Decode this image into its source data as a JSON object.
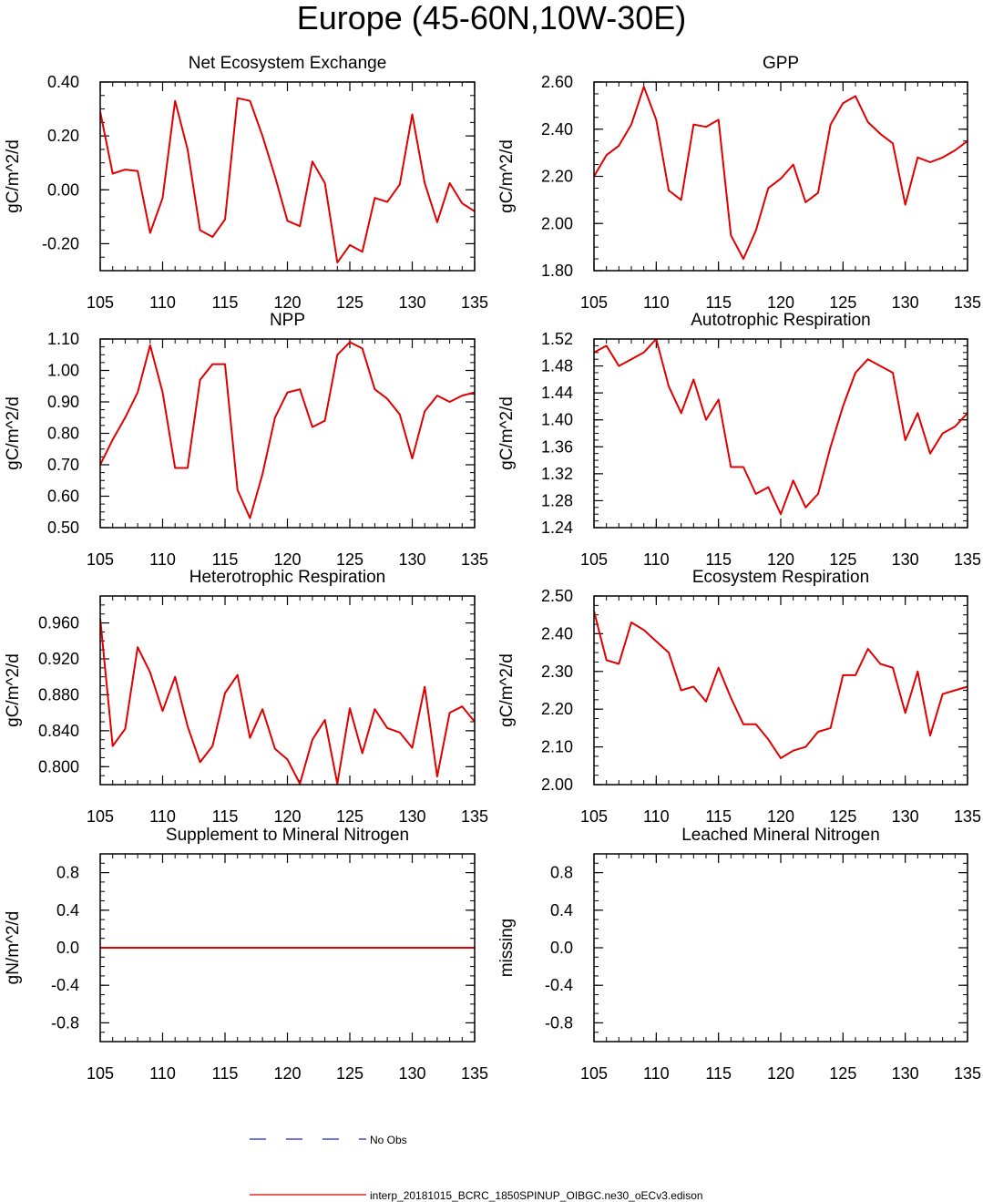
{
  "main_title": "Europe (45-60N,10W-30E)",
  "legend": {
    "items": [
      {
        "label": "No Obs",
        "color": "#2222cc",
        "style": "dashed"
      },
      {
        "label": "interp_20181015_BCRC_1850SPINUP_OIBGC.ne30_oECv3.edison",
        "color": "#e00000",
        "style": "solid"
      }
    ]
  },
  "chart_data": [
    {
      "type": "line",
      "title": "Net Ecosystem Exchange",
      "ylabel": "gC/m^2/d",
      "xlim": [
        105,
        135
      ],
      "ylim": [
        -0.3,
        0.4
      ],
      "yticks": [
        0.4,
        0.2,
        0.0,
        -0.2
      ],
      "ytick_labels": [
        "0.40",
        "0.20",
        "0.00",
        "-0.20"
      ],
      "xticks": [
        105,
        110,
        115,
        120,
        125,
        130,
        135
      ],
      "xtick_labels": [
        "105",
        "110",
        "115",
        "120",
        "125",
        "130",
        "135"
      ],
      "series": [
        {
          "color": "#e00000",
          "x": [
            105,
            106,
            107,
            108,
            109,
            110,
            111,
            112,
            113,
            114,
            115,
            116,
            117,
            118,
            119,
            120,
            121,
            122,
            123,
            124,
            125,
            126,
            127,
            128,
            129,
            130,
            131,
            132,
            133,
            134,
            135
          ],
          "values": [
            0.29,
            0.06,
            0.075,
            0.07,
            -0.16,
            -0.03,
            0.33,
            0.15,
            -0.15,
            -0.175,
            -0.11,
            0.34,
            0.33,
            0.2,
            0.05,
            -0.115,
            -0.135,
            0.105,
            0.025,
            -0.27,
            -0.205,
            -0.23,
            -0.03,
            -0.045,
            0.02,
            0.28,
            0.025,
            -0.12,
            0.025,
            -0.05,
            -0.08
          ]
        }
      ]
    },
    {
      "type": "line",
      "title": "GPP",
      "ylabel": "gC/m^2/d",
      "xlim": [
        105,
        135
      ],
      "ylim": [
        1.8,
        2.6
      ],
      "yticks": [
        2.6,
        2.4,
        2.2,
        2.0,
        1.8
      ],
      "ytick_labels": [
        "2.60",
        "2.40",
        "2.20",
        "2.00",
        "1.80"
      ],
      "xticks": [
        105,
        110,
        115,
        120,
        125,
        130,
        135
      ],
      "xtick_labels": [
        "105",
        "110",
        "115",
        "120",
        "125",
        "130",
        "135"
      ],
      "series": [
        {
          "color": "#e00000",
          "x": [
            105,
            106,
            107,
            108,
            109,
            110,
            111,
            112,
            113,
            114,
            115,
            116,
            117,
            118,
            119,
            120,
            121,
            122,
            123,
            124,
            125,
            126,
            127,
            128,
            129,
            130,
            131,
            132,
            133,
            134,
            135
          ],
          "values": [
            2.2,
            2.29,
            2.33,
            2.42,
            2.58,
            2.44,
            2.14,
            2.1,
            2.42,
            2.41,
            2.44,
            1.95,
            1.85,
            1.97,
            2.15,
            2.19,
            2.25,
            2.09,
            2.13,
            2.42,
            2.51,
            2.54,
            2.43,
            2.38,
            2.34,
            2.08,
            2.28,
            2.26,
            2.28,
            2.31,
            2.35
          ]
        }
      ]
    },
    {
      "type": "line",
      "title": "NPP",
      "ylabel": "gC/m^2/d",
      "xlim": [
        105,
        135
      ],
      "ylim": [
        0.5,
        1.1
      ],
      "yticks": [
        1.1,
        1.0,
        0.9,
        0.8,
        0.7,
        0.6,
        0.5
      ],
      "ytick_labels": [
        "1.10",
        "1.00",
        "0.90",
        "0.80",
        "0.70",
        "0.60",
        "0.50"
      ],
      "xticks": [
        105,
        110,
        115,
        120,
        125,
        130,
        135
      ],
      "xtick_labels": [
        "105",
        "110",
        "115",
        "120",
        "125",
        "130",
        "135"
      ],
      "series": [
        {
          "color": "#e00000",
          "x": [
            105,
            106,
            107,
            108,
            109,
            110,
            111,
            112,
            113,
            114,
            115,
            116,
            117,
            118,
            119,
            120,
            121,
            122,
            123,
            124,
            125,
            126,
            127,
            128,
            129,
            130,
            131,
            132,
            133,
            134,
            135
          ],
          "values": [
            0.7,
            0.78,
            0.85,
            0.93,
            1.08,
            0.93,
            0.69,
            0.69,
            0.97,
            1.02,
            1.02,
            0.62,
            0.53,
            0.67,
            0.85,
            0.93,
            0.94,
            0.82,
            0.84,
            1.05,
            1.09,
            1.07,
            0.94,
            0.91,
            0.86,
            0.72,
            0.87,
            0.92,
            0.9,
            0.92,
            0.93
          ]
        }
      ]
    },
    {
      "type": "line",
      "title": "Autotrophic Respiration",
      "ylabel": "gC/m^2/d",
      "xlim": [
        105,
        135
      ],
      "ylim": [
        1.24,
        1.52
      ],
      "yticks": [
        1.52,
        1.48,
        1.44,
        1.4,
        1.36,
        1.32,
        1.28,
        1.24
      ],
      "ytick_labels": [
        "1.52",
        "1.48",
        "1.44",
        "1.40",
        "1.36",
        "1.32",
        "1.28",
        "1.24"
      ],
      "xticks": [
        105,
        110,
        115,
        120,
        125,
        130,
        135
      ],
      "xtick_labels": [
        "105",
        "110",
        "115",
        "120",
        "125",
        "130",
        "135"
      ],
      "series": [
        {
          "color": "#e00000",
          "x": [
            105,
            106,
            107,
            108,
            109,
            110,
            111,
            112,
            113,
            114,
            115,
            116,
            117,
            118,
            119,
            120,
            121,
            122,
            123,
            124,
            125,
            126,
            127,
            128,
            129,
            130,
            131,
            132,
            133,
            134,
            135
          ],
          "values": [
            1.5,
            1.51,
            1.48,
            1.49,
            1.5,
            1.52,
            1.45,
            1.41,
            1.46,
            1.4,
            1.43,
            1.33,
            1.33,
            1.29,
            1.3,
            1.26,
            1.31,
            1.27,
            1.29,
            1.36,
            1.42,
            1.47,
            1.49,
            1.48,
            1.47,
            1.37,
            1.41,
            1.35,
            1.38,
            1.39,
            1.41
          ]
        }
      ]
    },
    {
      "type": "line",
      "title": "Heterotrophic Respiration",
      "ylabel": "gC/m^2/d",
      "xlim": [
        105,
        135
      ],
      "ylim": [
        0.78,
        0.99
      ],
      "yticks": [
        0.96,
        0.92,
        0.88,
        0.84,
        0.8
      ],
      "ytick_labels": [
        "0.960",
        "0.920",
        "0.880",
        "0.840",
        "0.800"
      ],
      "xticks": [
        105,
        110,
        115,
        120,
        125,
        130,
        135
      ],
      "xtick_labels": [
        "105",
        "110",
        "115",
        "120",
        "125",
        "130",
        "135"
      ],
      "series": [
        {
          "color": "#e00000",
          "x": [
            105,
            106,
            107,
            108,
            109,
            110,
            111,
            112,
            113,
            114,
            115,
            116,
            117,
            118,
            119,
            120,
            121,
            122,
            123,
            124,
            125,
            126,
            127,
            128,
            129,
            130,
            131,
            132,
            133,
            134,
            135
          ],
          "values": [
            0.965,
            0.823,
            0.842,
            0.933,
            0.905,
            0.862,
            0.9,
            0.845,
            0.805,
            0.823,
            0.882,
            0.902,
            0.832,
            0.864,
            0.82,
            0.808,
            0.781,
            0.83,
            0.852,
            0.781,
            0.865,
            0.815,
            0.864,
            0.843,
            0.838,
            0.821,
            0.889,
            0.789,
            0.86,
            0.867,
            0.85
          ]
        }
      ]
    },
    {
      "type": "line",
      "title": "Ecosystem Respiration",
      "ylabel": "gC/m^2/d",
      "xlim": [
        105,
        135
      ],
      "ylim": [
        2.0,
        2.5
      ],
      "yticks": [
        2.5,
        2.4,
        2.3,
        2.2,
        2.1,
        2.0
      ],
      "ytick_labels": [
        "2.50",
        "2.40",
        "2.30",
        "2.20",
        "2.10",
        "2.00"
      ],
      "xticks": [
        105,
        110,
        115,
        120,
        125,
        130,
        135
      ],
      "xtick_labels": [
        "105",
        "110",
        "115",
        "120",
        "125",
        "130",
        "135"
      ],
      "series": [
        {
          "color": "#e00000",
          "x": [
            105,
            106,
            107,
            108,
            109,
            110,
            111,
            112,
            113,
            114,
            115,
            116,
            117,
            118,
            119,
            120,
            121,
            122,
            123,
            124,
            125,
            126,
            127,
            128,
            129,
            130,
            131,
            132,
            133,
            134,
            135
          ],
          "values": [
            2.46,
            2.33,
            2.32,
            2.43,
            2.41,
            2.38,
            2.35,
            2.25,
            2.26,
            2.22,
            2.31,
            2.23,
            2.16,
            2.16,
            2.12,
            2.07,
            2.09,
            2.1,
            2.14,
            2.15,
            2.29,
            2.29,
            2.36,
            2.32,
            2.31,
            2.19,
            2.3,
            2.13,
            2.24,
            2.25,
            2.26
          ]
        }
      ]
    },
    {
      "type": "line",
      "title": "Supplement to Mineral Nitrogen",
      "ylabel": "gN/m^2/d",
      "xlim": [
        105,
        135
      ],
      "ylim": [
        -1.0,
        1.0
      ],
      "yticks": [
        0.8,
        0.4,
        0.0,
        -0.4,
        -0.8
      ],
      "ytick_labels": [
        "0.8",
        "0.4",
        "0.0",
        "-0.4",
        "-0.8"
      ],
      "xticks": [
        105,
        110,
        115,
        120,
        125,
        130,
        135
      ],
      "xtick_labels": [
        "105",
        "110",
        "115",
        "120",
        "125",
        "130",
        "135"
      ],
      "series": [
        {
          "color": "#e00000",
          "x": [
            105,
            135
          ],
          "values": [
            0.0,
            0.0
          ]
        }
      ]
    },
    {
      "type": "line",
      "title": "Leached Mineral Nitrogen",
      "ylabel": "missing",
      "xlim": [
        105,
        135
      ],
      "ylim": [
        -1.0,
        1.0
      ],
      "yticks": [
        0.8,
        0.4,
        0.0,
        -0.4,
        -0.8
      ],
      "ytick_labels": [
        "0.8",
        "0.4",
        "0.0",
        "-0.4",
        "-0.8"
      ],
      "xticks": [
        105,
        110,
        115,
        120,
        125,
        130,
        135
      ],
      "xtick_labels": [
        "105",
        "110",
        "115",
        "120",
        "125",
        "130",
        "135"
      ],
      "series": []
    }
  ]
}
